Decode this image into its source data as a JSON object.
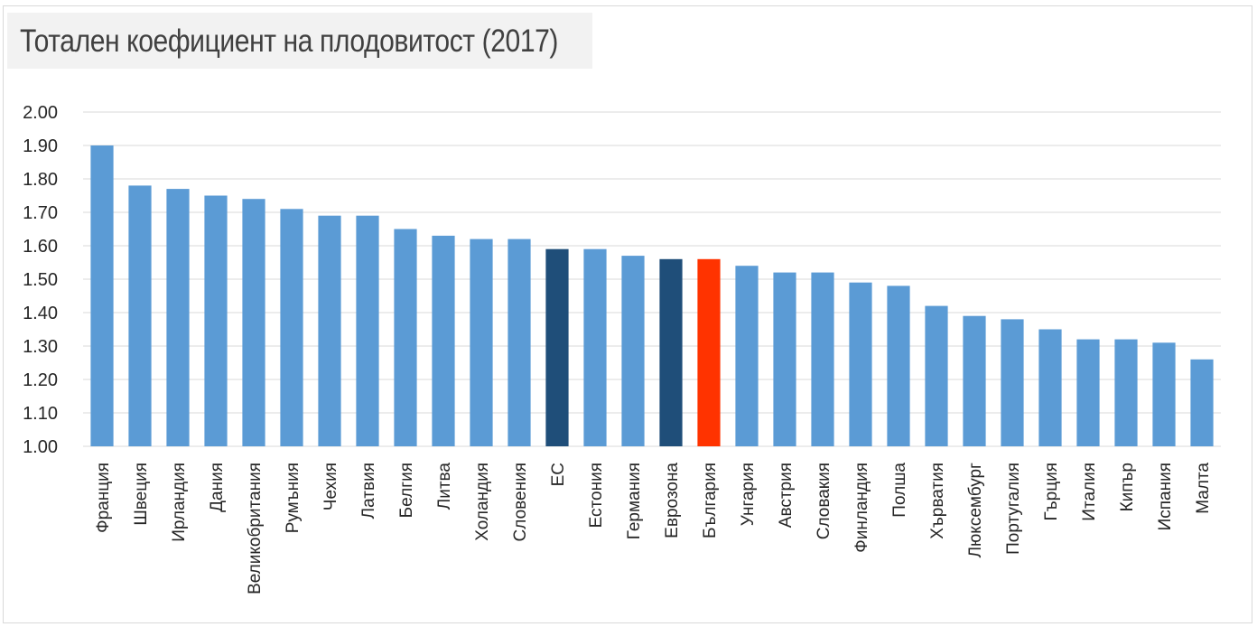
{
  "chart_data": {
    "type": "bar",
    "title": "Тотален коефициент на плодовитост (2017)",
    "xlabel": "",
    "ylabel": "",
    "ylim": [
      1.0,
      2.0
    ],
    "yticks": [
      "1.00",
      "1.10",
      "1.20",
      "1.30",
      "1.40",
      "1.50",
      "1.60",
      "1.70",
      "1.80",
      "1.90",
      "2.00"
    ],
    "grid": true,
    "categories": [
      "Франция",
      "Швеция",
      "Ирландия",
      "Дания",
      "Великобритания",
      "Румъния",
      "Чехия",
      "Латвия",
      "Белгия",
      "Литва",
      "Холандия",
      "Словения",
      "ЕС",
      "Естония",
      "Германия",
      "Еврозона",
      "България",
      "Унгария",
      "Австрия",
      "Словакия",
      "Финландия",
      "Полша",
      "Хърватия",
      "Люксембург",
      "Португалия",
      "Гърция",
      "Италия",
      "Кипър",
      "Испания",
      "Малта"
    ],
    "values": [
      1.9,
      1.78,
      1.77,
      1.75,
      1.74,
      1.71,
      1.69,
      1.69,
      1.65,
      1.63,
      1.62,
      1.62,
      1.59,
      1.59,
      1.57,
      1.56,
      1.56,
      1.54,
      1.52,
      1.52,
      1.49,
      1.48,
      1.42,
      1.39,
      1.38,
      1.35,
      1.32,
      1.32,
      1.31,
      1.26
    ],
    "bar_colors": [
      "#5b9bd5",
      "#5b9bd5",
      "#5b9bd5",
      "#5b9bd5",
      "#5b9bd5",
      "#5b9bd5",
      "#5b9bd5",
      "#5b9bd5",
      "#5b9bd5",
      "#5b9bd5",
      "#5b9bd5",
      "#5b9bd5",
      "#1f4e79",
      "#5b9bd5",
      "#5b9bd5",
      "#1f4e79",
      "#ff3300",
      "#5b9bd5",
      "#5b9bd5",
      "#5b9bd5",
      "#5b9bd5",
      "#5b9bd5",
      "#5b9bd5",
      "#5b9bd5",
      "#5b9bd5",
      "#5b9bd5",
      "#5b9bd5",
      "#5b9bd5",
      "#5b9bd5",
      "#5b9bd5"
    ],
    "colors": {
      "default_bar": "#5b9bd5",
      "aggregate_bar": "#1f4e79",
      "highlight_bar": "#ff3300",
      "gridline": "#d9d9d9"
    }
  }
}
